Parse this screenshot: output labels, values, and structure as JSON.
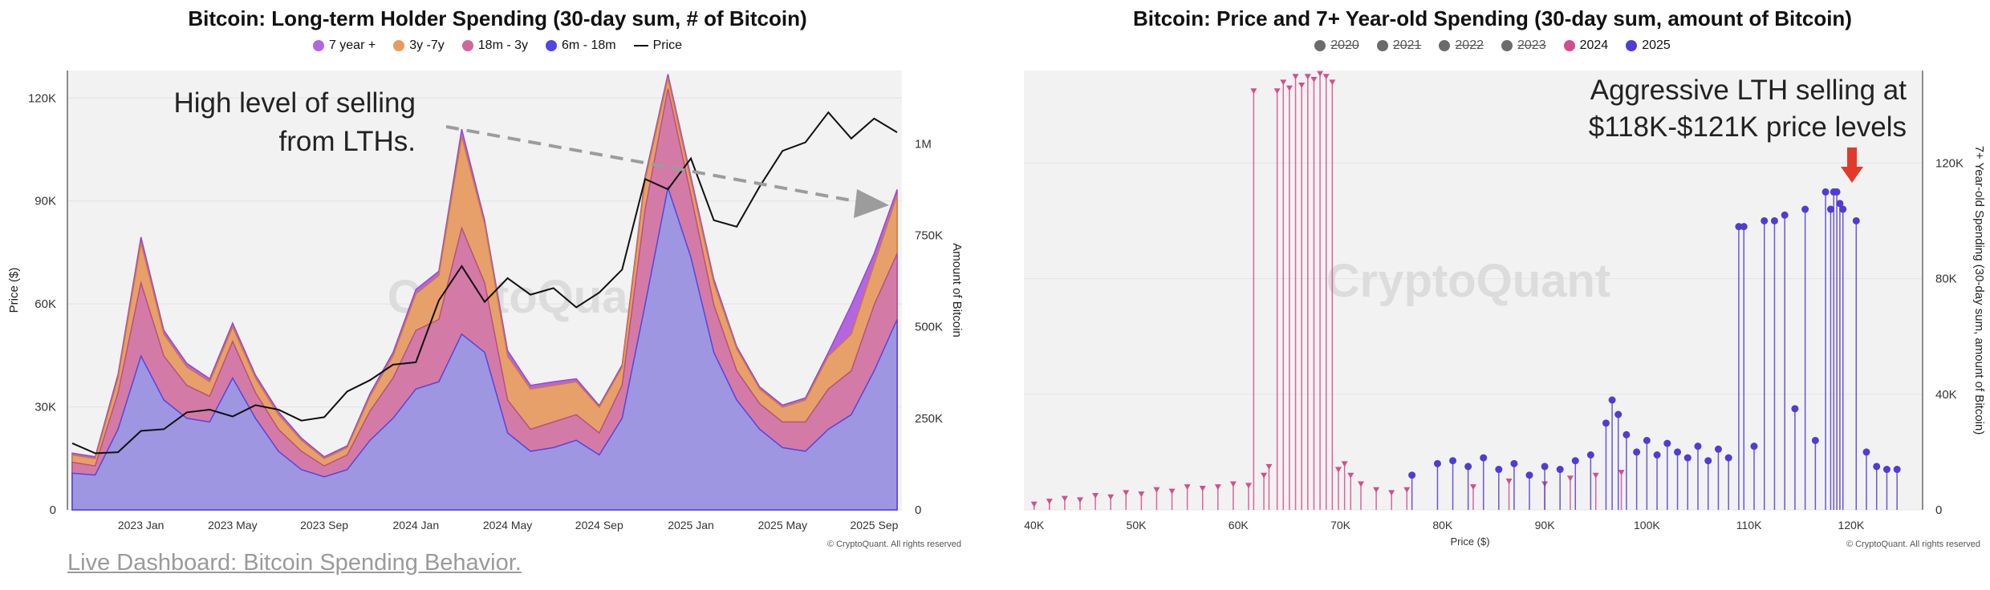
{
  "link": {
    "label": "Live Dashboard: Bitcoin Spending Behavior."
  },
  "chart_data": [
    {
      "type": "area",
      "title": "Bitcoin: Long-term Holder Spending (30-day sum, # of Bitcoin)",
      "ylabel": "Price ($)",
      "y2label": "Amount of Bitcoin",
      "xlabel": "",
      "ylim": [
        0,
        128000
      ],
      "y2lim": [
        0,
        1200000
      ],
      "yticks": [
        "0",
        "30K",
        "60K",
        "90K",
        "120K"
      ],
      "y2ticks": [
        "0",
        "250K",
        "500K",
        "750K",
        "1M"
      ],
      "xticks": [
        "2023 Jan",
        "2023 May",
        "2023 Sep",
        "2024 Jan",
        "2024 May",
        "2024 Sep",
        "2025 Jan",
        "2025 May",
        "2025 Sep"
      ],
      "x": [
        "2022-10",
        "2022-11",
        "2022-12",
        "2023-01",
        "2023-02",
        "2023-03",
        "2023-04",
        "2023-05",
        "2023-06",
        "2023-07",
        "2023-08",
        "2023-09",
        "2023-10",
        "2023-11",
        "2023-12",
        "2024-01",
        "2024-02",
        "2024-03",
        "2024-04",
        "2024-05",
        "2024-06",
        "2024-07",
        "2024-08",
        "2024-09",
        "2024-10",
        "2024-11",
        "2024-12",
        "2025-01",
        "2025-02",
        "2025-03",
        "2025-04",
        "2025-05",
        "2025-06",
        "2025-07",
        "2025-08",
        "2025-09",
        "2025-10"
      ],
      "series": [
        {
          "name": "6m - 18m",
          "color": "#4f46e5",
          "values": [
            100000,
            95000,
            220000,
            420000,
            300000,
            250000,
            240000,
            360000,
            250000,
            160000,
            110000,
            90000,
            110000,
            190000,
            250000,
            330000,
            350000,
            480000,
            430000,
            210000,
            160000,
            170000,
            190000,
            150000,
            250000,
            560000,
            880000,
            690000,
            430000,
            300000,
            220000,
            170000,
            160000,
            220000,
            260000,
            380000,
            520000
          ]
        },
        {
          "name": "18m - 3y",
          "color": "#d0679b",
          "values": [
            130000,
            120000,
            320000,
            620000,
            420000,
            340000,
            310000,
            460000,
            320000,
            220000,
            160000,
            120000,
            150000,
            270000,
            360000,
            490000,
            520000,
            770000,
            620000,
            300000,
            220000,
            240000,
            260000,
            210000,
            340000,
            820000,
            1150000,
            860000,
            560000,
            380000,
            290000,
            240000,
            240000,
            330000,
            380000,
            560000,
            700000
          ]
        },
        {
          "name": "3y -7y",
          "color": "#e89a5f",
          "values": [
            150000,
            140000,
            360000,
            730000,
            480000,
            390000,
            350000,
            500000,
            360000,
            260000,
            190000,
            140000,
            170000,
            310000,
            420000,
            590000,
            640000,
            1020000,
            780000,
            420000,
            330000,
            340000,
            350000,
            280000,
            390000,
            900000,
            1180000,
            900000,
            620000,
            440000,
            330000,
            280000,
            300000,
            420000,
            480000,
            670000,
            860000
          ]
        },
        {
          "name": "7 year +",
          "color": "#b366e0",
          "values": [
            155000,
            145000,
            370000,
            745000,
            490000,
            400000,
            358000,
            510000,
            368000,
            268000,
            196000,
            145000,
            175000,
            318000,
            430000,
            602000,
            652000,
            1040000,
            790000,
            435000,
            340000,
            350000,
            358000,
            285000,
            396000,
            910000,
            1190000,
            910000,
            630000,
            446000,
            336000,
            286000,
            306000,
            430000,
            560000,
            700000,
            875000
          ]
        }
      ],
      "price": {
        "name": "Price",
        "color": "#111111",
        "values": [
          19400,
          16500,
          16800,
          23000,
          23500,
          28400,
          29200,
          27200,
          30500,
          29200,
          26000,
          27000,
          34500,
          37800,
          42300,
          43000,
          61000,
          71000,
          60600,
          67500,
          62700,
          64600,
          59000,
          63300,
          70000,
          96400,
          93400,
          102400,
          84400,
          82500,
          94200,
          104600,
          107100,
          115800,
          108200,
          114000,
          110000
        ]
      },
      "annotation": "High level of selling from LTHs.",
      "watermark": "CryptoQuant",
      "copyright": "© CryptoQuant. All rights reserved"
    },
    {
      "type": "scatter",
      "title": "Bitcoin: Price and 7+ Year-old Spending (30-day sum, amount of Bitcoin)",
      "xlabel": "Price ($)",
      "ylabel": "7+ Year-old Spending (30-day sum, amount of Bitcoin)",
      "xlim": [
        39000,
        127000
      ],
      "ylim": [
        0,
        152000
      ],
      "xticks": [
        "40K",
        "50K",
        "60K",
        "70K",
        "80K",
        "90K",
        "100K",
        "110K",
        "120K"
      ],
      "yticks": [
        "0",
        "40K",
        "80K",
        "120K"
      ],
      "legend": [
        "2020",
        "2021",
        "2022",
        "2023",
        "2024",
        "2025"
      ],
      "legend_struck": [
        "2020",
        "2021",
        "2022",
        "2023"
      ],
      "series": [
        {
          "name": "2024",
          "color": "#d14f8e",
          "marker": "triangle",
          "x": [
            40000,
            41500,
            43000,
            44500,
            46000,
            47500,
            49000,
            50500,
            52000,
            53500,
            55000,
            56500,
            58000,
            59500,
            61000,
            61500,
            62500,
            63000,
            63800,
            64400,
            65000,
            65600,
            66200,
            66800,
            67400,
            68000,
            68600,
            69200,
            69800,
            70400,
            71000,
            72000,
            73500,
            75000,
            76500,
            83000,
            86500,
            90000,
            92500,
            95000,
            97500
          ],
          "y": [
            2000,
            3000,
            4000,
            3500,
            5000,
            4500,
            6000,
            5500,
            7000,
            6500,
            8000,
            7500,
            8000,
            9000,
            8500,
            145000,
            12000,
            15000,
            145000,
            148000,
            146000,
            150000,
            147000,
            150000,
            149000,
            151000,
            150000,
            148000,
            14000,
            16000,
            12000,
            9000,
            7000,
            6000,
            7000,
            8000,
            10000,
            9000,
            11000,
            12000,
            13000
          ]
        },
        {
          "name": "2025",
          "color": "#4f3cd6",
          "marker": "circle",
          "x": [
            77000,
            79500,
            81000,
            82500,
            84000,
            85500,
            87000,
            88500,
            90000,
            91500,
            93000,
            94500,
            96000,
            96600,
            97200,
            98000,
            99000,
            100000,
            101000,
            102000,
            103000,
            104000,
            105000,
            106000,
            107000,
            108000,
            109000,
            109500,
            110500,
            111500,
            112500,
            113500,
            114500,
            115500,
            116500,
            117500,
            118000,
            118300,
            118600,
            118900,
            119200,
            120500,
            121500,
            122500,
            123500,
            124500
          ],
          "y": [
            12000,
            16000,
            17000,
            15000,
            18000,
            14000,
            16000,
            12000,
            15000,
            14000,
            17000,
            19000,
            30000,
            38000,
            33000,
            26000,
            20000,
            24000,
            19000,
            23000,
            20000,
            18000,
            22000,
            17000,
            21000,
            18000,
            98000,
            98000,
            22000,
            100000,
            100000,
            102000,
            35000,
            104000,
            24000,
            110000,
            104000,
            110000,
            110000,
            106000,
            104000,
            100000,
            20000,
            15000,
            14000,
            14000
          ]
        }
      ],
      "annotation": "Aggressive LTH selling at $118K-$121K price levels",
      "watermark": "CryptoQuant",
      "copyright": "© CryptoQuant. All rights reserved"
    }
  ]
}
